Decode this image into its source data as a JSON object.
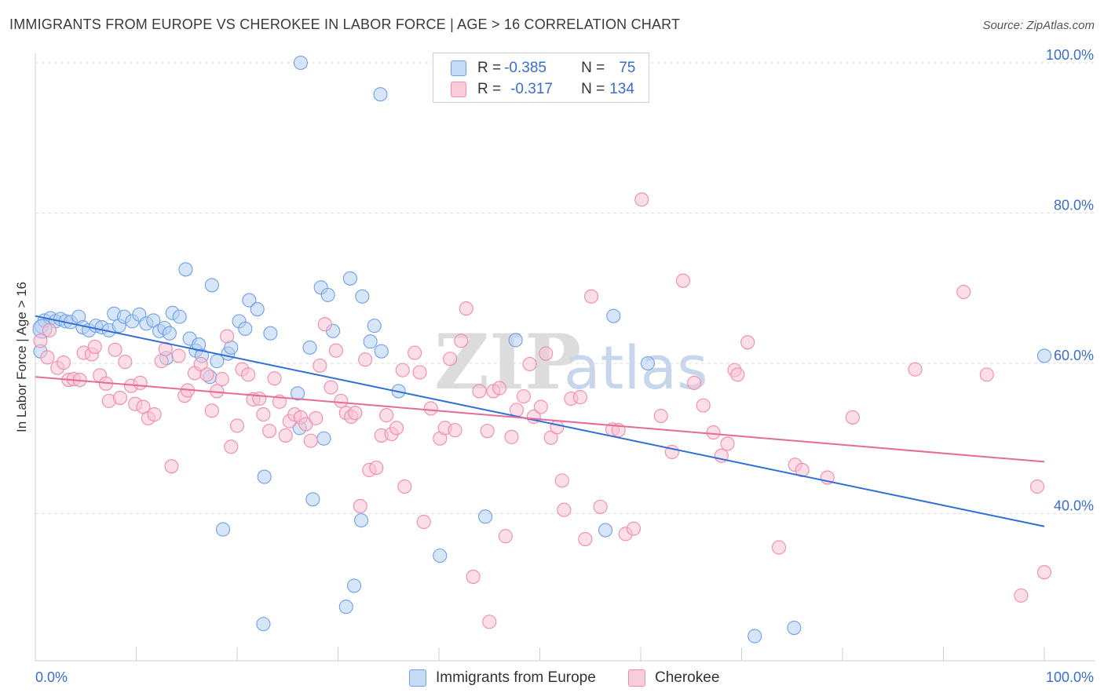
{
  "title": "IMMIGRANTS FROM EUROPE VS CHEROKEE IN LABOR FORCE | AGE > 16 CORRELATION CHART",
  "source": "Source: ZipAtlas.com",
  "watermark": "ZIPatlas",
  "legend": {
    "rows": [
      {
        "r_label": "R = ",
        "r_value": "-0.385",
        "n_label": "N = ",
        "n_value": "75",
        "color": "#a9c6f0"
      },
      {
        "r_label": "R = ",
        "r_value": "-0.317",
        "n_label": "N = ",
        "n_value": "134",
        "color": "#f6b9cc"
      }
    ]
  },
  "chart_data": {
    "type": "scatter",
    "title": "IMMIGRANTS FROM EUROPE VS CHEROKEE IN LABOR FORCE | AGE > 16 CORRELATION CHART",
    "xlabel": "",
    "ylabel": "In Labor Force | Age > 16",
    "xlim": [
      0,
      100
    ],
    "ylim": [
      22,
      102
    ],
    "x_tick_labels": [
      "0.0%",
      "100.0%"
    ],
    "y_ticks": [
      40,
      60,
      80,
      100
    ],
    "y_tick_labels": [
      "40.0%",
      "60.0%",
      "80.0%",
      "100.0%"
    ],
    "grid": true,
    "legend_position": "top-center",
    "series": [
      {
        "name": "Immigrants from Europe",
        "color": "#6fa0e6",
        "fill": "#b7d0f3",
        "line_color": "#2e6fd6",
        "trend": {
          "x": [
            0,
            100
          ],
          "y": [
            66.3,
            38.3
          ]
        },
        "points": [
          [
            0.5,
            61.6
          ],
          [
            0.6,
            64.9
          ],
          [
            0.9,
            65.7
          ],
          [
            1.5,
            66
          ],
          [
            2,
            65.6
          ],
          [
            2.5,
            65.9
          ],
          [
            3,
            65.6
          ],
          [
            3.5,
            65.5
          ],
          [
            4.3,
            66.2
          ],
          [
            4.7,
            64.8
          ],
          [
            5.3,
            64.4
          ],
          [
            6,
            65
          ],
          [
            6.6,
            64.8
          ],
          [
            7.3,
            64.4
          ],
          [
            7.8,
            66.6
          ],
          [
            8.3,
            65
          ],
          [
            8.8,
            66.2
          ],
          [
            9.6,
            65.6
          ],
          [
            10.3,
            66.5
          ],
          [
            11,
            65.3
          ],
          [
            11.7,
            65.7
          ],
          [
            12.3,
            64.3
          ],
          [
            12.8,
            64.7
          ],
          [
            13,
            60.7
          ],
          [
            13.3,
            64
          ],
          [
            13.6,
            66.7
          ],
          [
            14.3,
            66.2
          ],
          [
            15.3,
            63.3
          ],
          [
            15.9,
            61.7
          ],
          [
            16.2,
            62.5
          ],
          [
            16.5,
            61
          ],
          [
            17.3,
            58.2
          ],
          [
            18,
            60.3
          ],
          [
            14.9,
            72.5
          ],
          [
            17.5,
            70.4
          ],
          [
            19.1,
            61.3
          ],
          [
            19.4,
            62.1
          ],
          [
            20.2,
            65.6
          ],
          [
            20.8,
            64.6
          ],
          [
            21.2,
            68.4
          ],
          [
            22,
            67.2
          ],
          [
            23.3,
            64
          ],
          [
            26,
            56
          ],
          [
            22.7,
            44.9
          ],
          [
            26.2,
            51.4
          ],
          [
            27.5,
            41.9
          ],
          [
            18.6,
            37.9
          ],
          [
            22.6,
            25.3
          ],
          [
            26.3,
            100
          ],
          [
            27.2,
            62.1
          ],
          [
            28.3,
            70.1
          ],
          [
            29,
            69.1
          ],
          [
            29.5,
            64.3
          ],
          [
            31.2,
            71.3
          ],
          [
            32.4,
            68.9
          ],
          [
            33.2,
            62.9
          ],
          [
            33.6,
            65
          ],
          [
            34.3,
            61.6
          ],
          [
            28.6,
            50
          ],
          [
            31.6,
            30.4
          ],
          [
            32.3,
            39.1
          ],
          [
            30.8,
            27.6
          ],
          [
            34.2,
            95.8
          ],
          [
            36,
            56.3
          ],
          [
            40.1,
            34.4
          ],
          [
            44.6,
            39.6
          ],
          [
            47.6,
            63.1
          ],
          [
            56.5,
            37.8
          ],
          [
            57.3,
            66.3
          ],
          [
            60.7,
            60
          ],
          [
            71.3,
            23.7
          ],
          [
            75.2,
            24.8
          ],
          [
            100,
            61
          ]
        ]
      },
      {
        "name": "Cherokee",
        "color": "#f08bab",
        "fill": "#f8c3d3",
        "line_color": "#e56b98",
        "trend": {
          "x": [
            0,
            100
          ],
          "y": [
            58.2,
            46.9
          ]
        },
        "points": [
          [
            0.5,
            63
          ],
          [
            1.2,
            60.8
          ],
          [
            1.4,
            64.4
          ],
          [
            2.2,
            59.4
          ],
          [
            2.8,
            60.1
          ],
          [
            3.3,
            57.8
          ],
          [
            3.8,
            57.9
          ],
          [
            4.4,
            57.8
          ],
          [
            4.8,
            61.4
          ],
          [
            5.6,
            61.2
          ],
          [
            5.9,
            62.2
          ],
          [
            6.4,
            58.4
          ],
          [
            7,
            57.3
          ],
          [
            7.3,
            55
          ],
          [
            7.9,
            61.8
          ],
          [
            8.4,
            55.4
          ],
          [
            8.9,
            60.2
          ],
          [
            9.5,
            57
          ],
          [
            9.9,
            54.6
          ],
          [
            10.4,
            57.4
          ],
          [
            10.7,
            54.2
          ],
          [
            11.2,
            52.7
          ],
          [
            11.8,
            53.2
          ],
          [
            12.5,
            60.3
          ],
          [
            12.9,
            61.9
          ],
          [
            13.5,
            46.3
          ],
          [
            14.2,
            61
          ],
          [
            14.8,
            55.7
          ],
          [
            15.1,
            56.4
          ],
          [
            15.8,
            58.7
          ],
          [
            16.4,
            59.9
          ],
          [
            17,
            58.5
          ],
          [
            17.5,
            53.7
          ],
          [
            18,
            56.3
          ],
          [
            18.5,
            57.9
          ],
          [
            19,
            63.6
          ],
          [
            19.4,
            48.9
          ],
          [
            20,
            51.7
          ],
          [
            20.5,
            59.2
          ],
          [
            21.1,
            58.5
          ],
          [
            21.6,
            55.2
          ],
          [
            22.2,
            55.3
          ],
          [
            22.6,
            53.2
          ],
          [
            23.2,
            51
          ],
          [
            23.7,
            58
          ],
          [
            24.2,
            54.9
          ],
          [
            24.8,
            50.4
          ],
          [
            25.2,
            52.3
          ],
          [
            25.7,
            53.2
          ],
          [
            26.3,
            52.8
          ],
          [
            26.8,
            51.9
          ],
          [
            27.3,
            49.7
          ],
          [
            27.8,
            52.7
          ],
          [
            28.2,
            59.7
          ],
          [
            28.7,
            65.2
          ],
          [
            29.3,
            56.8
          ],
          [
            29.8,
            61.7
          ],
          [
            30.3,
            55
          ],
          [
            30.8,
            53.4
          ],
          [
            31.3,
            52.9
          ],
          [
            31.7,
            53.4
          ],
          [
            32.2,
            41
          ],
          [
            32.7,
            60.5
          ],
          [
            33.1,
            45.8
          ],
          [
            33.8,
            46.1
          ],
          [
            34.3,
            50.4
          ],
          [
            34.8,
            53.1
          ],
          [
            35.3,
            50.6
          ],
          [
            35.8,
            51.4
          ],
          [
            36.4,
            59.1
          ],
          [
            37.6,
            61.4
          ],
          [
            38.1,
            58.8
          ],
          [
            39.2,
            54
          ],
          [
            40.1,
            50
          ],
          [
            40.6,
            51.4
          ],
          [
            41.1,
            60.6
          ],
          [
            41.6,
            51.1
          ],
          [
            42.2,
            63
          ],
          [
            42.7,
            67.3
          ],
          [
            43.4,
            31.6
          ],
          [
            44,
            56.3
          ],
          [
            44.8,
            51
          ],
          [
            45.4,
            56.3
          ],
          [
            46,
            56.7
          ],
          [
            46.6,
            37
          ],
          [
            47.2,
            50.2
          ],
          [
            47.7,
            53.8
          ],
          [
            48.4,
            55.6
          ],
          [
            49,
            59.9
          ],
          [
            49.4,
            52.9
          ],
          [
            50.1,
            54.2
          ],
          [
            50.6,
            61.3
          ],
          [
            51.1,
            50.1
          ],
          [
            51.7,
            51.5
          ],
          [
            52.2,
            44.4
          ],
          [
            53.1,
            55.3
          ],
          [
            54,
            55.5
          ],
          [
            54.5,
            36.6
          ],
          [
            55.1,
            68.9
          ],
          [
            56,
            40.9
          ],
          [
            57.2,
            51.2
          ],
          [
            57.8,
            51.1
          ],
          [
            58.5,
            37.3
          ],
          [
            59.3,
            38
          ],
          [
            60.1,
            81.8
          ],
          [
            62,
            53
          ],
          [
            63.1,
            48.2
          ],
          [
            64.2,
            71
          ],
          [
            65.3,
            57.4
          ],
          [
            66.2,
            54.4
          ],
          [
            67.2,
            50.8
          ],
          [
            68,
            47.7
          ],
          [
            68.6,
            49.3
          ],
          [
            69.3,
            59.1
          ],
          [
            69.6,
            58.5
          ],
          [
            70.6,
            62.8
          ],
          [
            73.7,
            35.5
          ],
          [
            75.3,
            46.5
          ],
          [
            76,
            45.8
          ],
          [
            78.5,
            44.8
          ],
          [
            81,
            52.8
          ],
          [
            87.2,
            59.2
          ],
          [
            92,
            69.5
          ],
          [
            94.3,
            58.5
          ],
          [
            97.7,
            29.1
          ],
          [
            99.3,
            43.6
          ],
          [
            100,
            32.2
          ],
          [
            52.4,
            40.5
          ],
          [
            38.5,
            38.9
          ],
          [
            36.6,
            43.6
          ],
          [
            45,
            25.6
          ]
        ]
      }
    ]
  },
  "axis": {
    "x_min_label": "0.0%",
    "x_max_label": "100.0%"
  }
}
